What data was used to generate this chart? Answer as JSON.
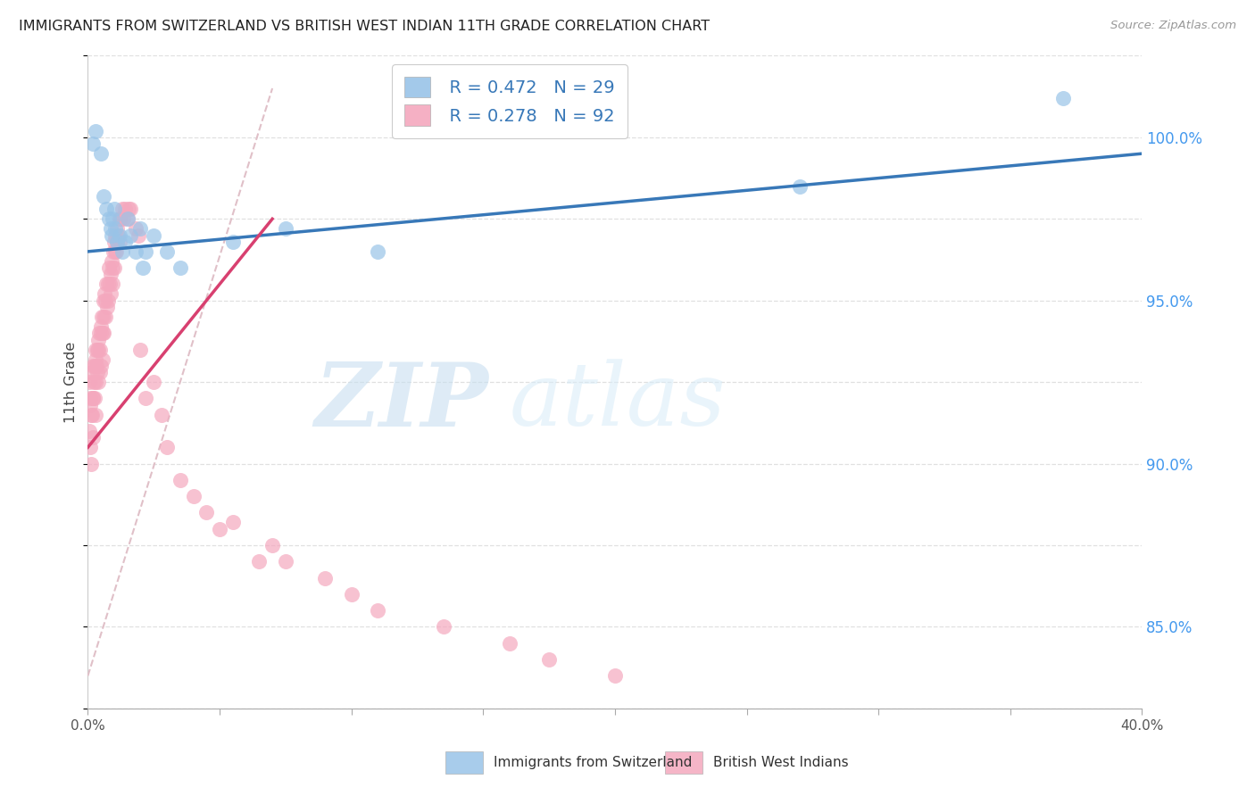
{
  "title": "IMMIGRANTS FROM SWITZERLAND VS BRITISH WEST INDIAN 11TH GRADE CORRELATION CHART",
  "source": "Source: ZipAtlas.com",
  "ylabel": "11th Grade",
  "xlabel_blue": "Immigrants from Switzerland",
  "xlabel_pink": "British West Indians",
  "x_min": 0.0,
  "x_max": 40.0,
  "y_min": 82.5,
  "y_max": 102.5,
  "y_ticks_right": [
    85.0,
    90.0,
    95.0,
    100.0
  ],
  "legend_blue_r": "R = 0.472",
  "legend_blue_n": "N = 29",
  "legend_pink_r": "R = 0.278",
  "legend_pink_n": "N = 92",
  "blue_dot_color": "#99c4e8",
  "pink_dot_color": "#f4a8be",
  "trendline_blue_color": "#3878b8",
  "trendline_pink_color": "#d84070",
  "ref_line_color": "#e0c0c8",
  "ref_line_style": "--",
  "blue_scatter_x": [
    0.2,
    0.3,
    0.5,
    0.6,
    0.7,
    0.8,
    0.85,
    0.9,
    0.95,
    1.0,
    1.05,
    1.1,
    1.2,
    1.3,
    1.4,
    1.5,
    1.6,
    1.8,
    2.0,
    2.1,
    2.2,
    2.5,
    3.0,
    3.5,
    5.5,
    7.5,
    11.0,
    27.0,
    37.0
  ],
  "blue_scatter_y": [
    99.8,
    100.2,
    99.5,
    98.2,
    97.8,
    97.5,
    97.2,
    97.0,
    97.5,
    97.8,
    97.2,
    96.8,
    97.0,
    96.5,
    96.8,
    97.5,
    97.0,
    96.5,
    97.2,
    96.0,
    96.5,
    97.0,
    96.5,
    96.0,
    96.8,
    97.2,
    96.5,
    98.5,
    101.2
  ],
  "pink_scatter_x": [
    0.05,
    0.05,
    0.08,
    0.1,
    0.1,
    0.12,
    0.12,
    0.15,
    0.15,
    0.18,
    0.2,
    0.2,
    0.2,
    0.22,
    0.25,
    0.25,
    0.28,
    0.3,
    0.3,
    0.3,
    0.32,
    0.35,
    0.35,
    0.38,
    0.4,
    0.4,
    0.42,
    0.45,
    0.45,
    0.48,
    0.5,
    0.5,
    0.52,
    0.55,
    0.55,
    0.58,
    0.6,
    0.6,
    0.62,
    0.65,
    0.68,
    0.7,
    0.72,
    0.75,
    0.78,
    0.8,
    0.82,
    0.85,
    0.88,
    0.9,
    0.92,
    0.95,
    0.98,
    1.0,
    1.0,
    1.02,
    1.05,
    1.08,
    1.1,
    1.12,
    1.15,
    1.2,
    1.2,
    1.25,
    1.3,
    1.35,
    1.4,
    1.5,
    1.55,
    1.6,
    1.8,
    1.9,
    2.0,
    2.2,
    2.5,
    2.8,
    3.0,
    3.5,
    4.0,
    4.5,
    5.0,
    5.5,
    6.5,
    7.0,
    7.5,
    9.0,
    10.0,
    11.0,
    13.5,
    16.0,
    17.5,
    20.0
  ],
  "pink_scatter_y": [
    92.5,
    91.0,
    91.8,
    92.0,
    90.5,
    91.5,
    90.0,
    92.8,
    91.5,
    92.0,
    93.0,
    92.0,
    90.8,
    92.5,
    93.0,
    92.0,
    93.2,
    93.5,
    92.5,
    91.5,
    93.0,
    93.5,
    92.8,
    93.8,
    93.5,
    92.5,
    94.0,
    93.5,
    92.8,
    94.0,
    94.2,
    93.0,
    94.5,
    94.0,
    93.2,
    94.5,
    95.0,
    94.0,
    95.2,
    95.0,
    94.5,
    95.5,
    94.8,
    95.5,
    95.0,
    96.0,
    95.5,
    95.8,
    95.2,
    96.2,
    96.0,
    95.5,
    96.5,
    96.8,
    96.0,
    96.5,
    97.0,
    96.5,
    97.2,
    96.8,
    97.0,
    97.5,
    96.8,
    97.5,
    97.8,
    97.5,
    97.8,
    97.5,
    97.8,
    97.8,
    97.2,
    97.0,
    93.5,
    92.0,
    92.5,
    91.5,
    90.5,
    89.5,
    89.0,
    88.5,
    88.0,
    88.2,
    87.0,
    87.5,
    87.0,
    86.5,
    86.0,
    85.5,
    85.0,
    84.5,
    84.0,
    83.5
  ],
  "trendline_blue_x0": 0.0,
  "trendline_blue_x1": 40.0,
  "trendline_blue_y0": 96.5,
  "trendline_blue_y1": 99.5,
  "trendline_pink_x0": 0.0,
  "trendline_pink_x1": 7.0,
  "trendline_pink_y0": 90.5,
  "trendline_pink_y1": 97.5,
  "ref_line_x0": 0.0,
  "ref_line_x1": 7.0,
  "ref_line_y0": 83.5,
  "ref_line_y1": 101.5
}
